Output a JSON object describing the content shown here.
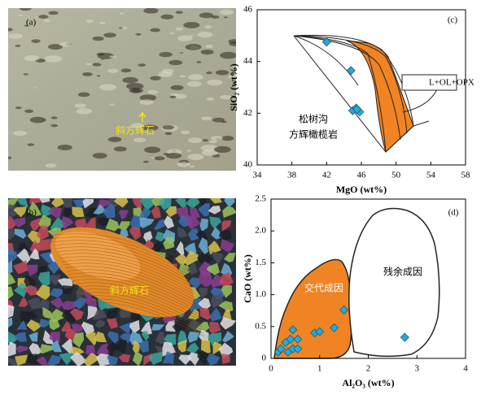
{
  "panels": [
    {
      "label": "(a)",
      "annotation": "斜方辉石"
    },
    {
      "label": "(b)",
      "annotation": "斜方辉石"
    }
  ],
  "chart_data": [
    {
      "type": "scatter",
      "panel_label": "(c)",
      "x_label": "MgO (wt%)",
      "y_label": "SiO₂ (wt%)",
      "annotations": [
        "L+OL+OPX",
        "松树沟",
        "方辉橄榄岩"
      ],
      "x": [
        42,
        44.8,
        45.0,
        45.4,
        45.8,
        45.5
      ],
      "values": [
        44.75,
        43.65,
        42.1,
        42.2,
        42.05,
        42.15
      ],
      "color": "#2aa8d4",
      "xlim": [
        34,
        58
      ],
      "xticks": [
        34,
        38,
        42,
        46,
        50,
        54,
        58
      ],
      "ylim": [
        40,
        46
      ],
      "yticks": [
        40,
        42,
        44,
        46
      ]
    },
    {
      "type": "scatter",
      "panel_label": "(d)",
      "x_label": "Al₂O₃ (wt%)",
      "y_label": "CaO (wt%)",
      "annotations": [
        "交代成因",
        "残余成因"
      ],
      "x": [
        0.15,
        0.2,
        0.3,
        0.35,
        0.4,
        0.45,
        0.45,
        0.55,
        0.55,
        0.9,
        1.0,
        1.3,
        1.5,
        2.75
      ],
      "values": [
        0.1,
        0.15,
        0.25,
        0.1,
        0.3,
        0.45,
        0.15,
        0.3,
        0.15,
        0.4,
        0.42,
        0.48,
        0.76,
        0.33
      ],
      "color": "#2aa8d4",
      "xlim": [
        0,
        4
      ],
      "xticks": [
        0,
        1,
        2,
        3,
        4
      ],
      "ylim": [
        0,
        2.5
      ],
      "yticks": [
        0,
        0.5,
        {
          "value": 1,
          "label": "1.0"
        },
        1.5,
        {
          "value": 2,
          "label": "2.0"
        },
        2.5
      ]
    }
  ]
}
